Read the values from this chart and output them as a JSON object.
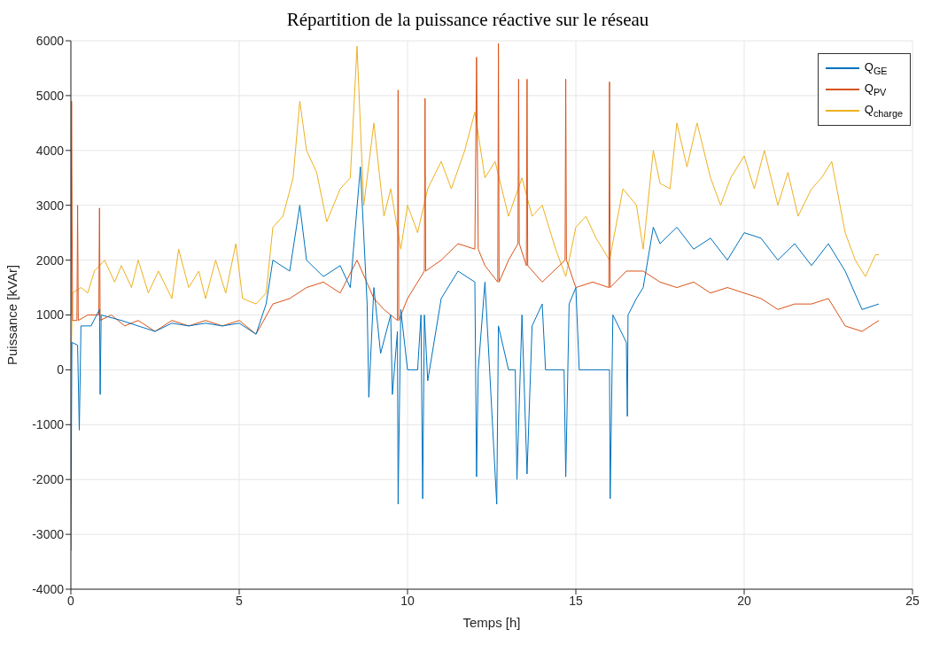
{
  "chart_data": {
    "type": "line",
    "title": "Répartition de la puissance réactive sur le réseau",
    "xlabel": "Temps [h]",
    "ylabel": "Puissance [kVAr]",
    "xlim": [
      0,
      25
    ],
    "xticks": [
      0,
      5,
      10,
      15,
      20,
      25
    ],
    "ylim": [
      -4000,
      6000
    ],
    "yticks": [
      -4000,
      -3000,
      -2000,
      -1000,
      0,
      1000,
      2000,
      3000,
      4000,
      5000,
      6000
    ],
    "grid": true,
    "legend": "top right",
    "marker": "none",
    "line_style": "solid",
    "series": [
      {
        "name": "Q$_{charge}$",
        "color": "#edb120",
        "x": [
          0,
          0.05,
          0.3,
          0.5,
          0.7,
          1,
          1.3,
          1.5,
          1.8,
          2,
          2.3,
          2.6,
          3,
          3.2,
          3.5,
          3.8,
          4,
          4.3,
          4.6,
          4.9,
          5.1,
          5.5,
          5.8,
          6,
          6.3,
          6.6,
          6.8,
          7,
          7.3,
          7.6,
          8,
          8.3,
          8.5,
          8.7,
          9,
          9.3,
          9.5,
          9.8,
          10,
          10.3,
          10.6,
          11,
          11.3,
          11.7,
          12,
          12.3,
          12.6,
          13,
          13.4,
          13.7,
          14,
          14.4,
          14.7,
          15,
          15.3,
          15.6,
          16,
          16.4,
          16.8,
          17,
          17.3,
          17.5,
          17.8,
          18,
          18.3,
          18.6,
          19,
          19.3,
          19.6,
          20,
          20.3,
          20.6,
          21,
          21.3,
          21.6,
          22,
          22.3,
          22.6,
          23,
          23.3,
          23.6,
          23.9,
          24
        ],
        "values": [
          0,
          1400,
          1500,
          1400,
          1800,
          2000,
          1600,
          1900,
          1500,
          2000,
          1400,
          1800,
          1300,
          2200,
          1500,
          1800,
          1300,
          2000,
          1400,
          2300,
          1300,
          1200,
          1400,
          2600,
          2800,
          3500,
          4900,
          4000,
          3600,
          2700,
          3300,
          3500,
          5900,
          3000,
          4500,
          2800,
          3300,
          2200,
          3000,
          2500,
          3300,
          3800,
          3300,
          4000,
          4700,
          3500,
          3800,
          2800,
          3500,
          2800,
          3000,
          2200,
          1700,
          2600,
          2800,
          2400,
          2000,
          3300,
          3000,
          2200,
          4000,
          3400,
          3300,
          4500,
          3700,
          4500,
          3500,
          3000,
          3500,
          3900,
          3300,
          4000,
          3000,
          3600,
          2800,
          3300,
          3500,
          3800,
          2500,
          2000,
          1700,
          2100,
          2100
        ]
      },
      {
        "name": "Q$_{PV}$",
        "color": "#d95319",
        "x": [
          0,
          0.02,
          0.05,
          0.18,
          0.2,
          0.22,
          0.5,
          0.83,
          0.85,
          0.87,
          1.2,
          1.6,
          2,
          2.5,
          3,
          3.5,
          4,
          4.5,
          5,
          5.5,
          6,
          6.5,
          7,
          7.5,
          8,
          8.5,
          9,
          9.3,
          9.7,
          9.72,
          9.74,
          10,
          10.5,
          10.52,
          10.54,
          11,
          11.5,
          12,
          12.05,
          12.1,
          12.3,
          12.68,
          12.7,
          12.72,
          13,
          13.28,
          13.3,
          13.32,
          13.53,
          13.55,
          13.57,
          14,
          14.68,
          14.7,
          14.72,
          15,
          15.5,
          15.98,
          16,
          16.02,
          16.5,
          17,
          17.5,
          18,
          18.5,
          19,
          19.5,
          20,
          20.5,
          21,
          21.5,
          22,
          22.5,
          23,
          23.5,
          24
        ],
        "values": [
          1000,
          4900,
          900,
          900,
          3000,
          900,
          1000,
          1000,
          2950,
          900,
          1000,
          800,
          900,
          700,
          900,
          800,
          900,
          800,
          900,
          650,
          1200,
          1300,
          1500,
          1600,
          1400,
          2000,
          1300,
          1100,
          900,
          5100,
          900,
          1300,
          1800,
          4950,
          1800,
          2000,
          2300,
          2200,
          5700,
          2200,
          1900,
          1600,
          5950,
          1600,
          2000,
          2300,
          5300,
          2300,
          1900,
          5300,
          1900,
          1600,
          2000,
          5300,
          2000,
          1500,
          1600,
          1500,
          5250,
          1500,
          1800,
          1800,
          1600,
          1500,
          1600,
          1400,
          1500,
          1400,
          1300,
          1100,
          1200,
          1200,
          1300,
          800,
          700,
          900
        ]
      },
      {
        "name": "Q$_{GE}$",
        "color": "#0072bd",
        "x": [
          0,
          0.03,
          0.2,
          0.25,
          0.3,
          0.6,
          0.85,
          0.87,
          0.9,
          1.5,
          2,
          2.5,
          3,
          3.5,
          4,
          4.5,
          5,
          5.5,
          5.8,
          6,
          6.5,
          6.8,
          7,
          7.5,
          8,
          8.3,
          8.6,
          8.8,
          8.85,
          9,
          9.2,
          9.5,
          9.55,
          9.7,
          9.72,
          9.8,
          10,
          10.3,
          10.4,
          10.45,
          10.5,
          10.6,
          11,
          11.5,
          12,
          12.05,
          12.1,
          12.3,
          12.65,
          12.7,
          13,
          13.2,
          13.25,
          13.4,
          13.55,
          13.7,
          14,
          14.1,
          14.65,
          14.7,
          14.8,
          15,
          15.1,
          16,
          16.02,
          16.1,
          16.5,
          16.53,
          16.55,
          16.8,
          17,
          17.3,
          17.5,
          18,
          18.5,
          19,
          19.5,
          20,
          20.5,
          21,
          21.5,
          22,
          22.5,
          23,
          23.5,
          24
        ],
        "values": [
          -3300,
          500,
          450,
          -1100,
          800,
          800,
          1100,
          -450,
          1000,
          900,
          800,
          700,
          850,
          800,
          850,
          800,
          850,
          650,
          1200,
          2000,
          1800,
          3000,
          2000,
          1700,
          1900,
          1500,
          3700,
          1200,
          -500,
          1500,
          300,
          1000,
          -450,
          700,
          -2450,
          1100,
          0,
          0,
          1000,
          -2350,
          1000,
          -200,
          1300,
          1800,
          1600,
          -1950,
          0,
          1600,
          -2450,
          800,
          0,
          0,
          -2000,
          1000,
          -1900,
          800,
          1200,
          0,
          0,
          -1950,
          1200,
          1500,
          0,
          0,
          -2350,
          1000,
          500,
          -850,
          1000,
          1300,
          1500,
          2600,
          2300,
          2600,
          2200,
          2400,
          2000,
          2500,
          2400,
          2000,
          2300,
          1900,
          2300,
          1800,
          1100,
          1200
        ]
      }
    ]
  }
}
